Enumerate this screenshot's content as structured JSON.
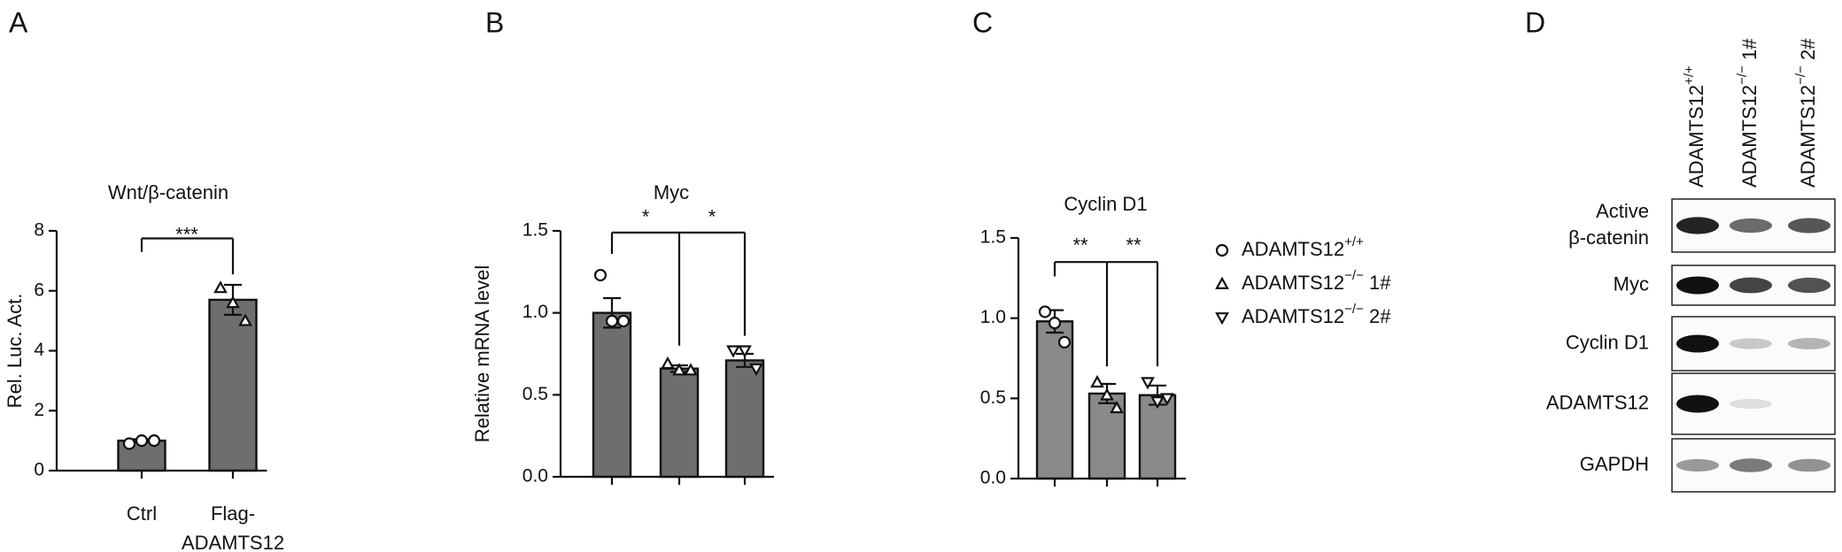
{
  "panels": [
    "A",
    "B",
    "C",
    "D"
  ],
  "chart_data": [
    {
      "type": "bar",
      "title": "Wnt/β-catenin",
      "ylabel": "Rel. Luc. Act.",
      "categories": [
        "Ctrl",
        [
          "Flag-",
          "ADAMTS12"
        ]
      ],
      "values": [
        1.0,
        5.7
      ],
      "errors": [
        0.05,
        0.5
      ],
      "points": [
        [
          0.9,
          1.0,
          1.0
        ],
        [
          6.1,
          5.6,
          5.0
        ]
      ],
      "markers": [
        "circle",
        "triangle"
      ],
      "color": "#6e6e6e",
      "ylim": [
        0,
        8
      ],
      "yticks": [
        0,
        2,
        4,
        6,
        8
      ],
      "annotations": [
        "***"
      ]
    },
    {
      "type": "bar",
      "title": "Myc",
      "ylabel": "Relative mRNA level",
      "categories": [
        null,
        null,
        null
      ],
      "values": [
        1.0,
        0.66,
        0.71
      ],
      "errors": [
        0.09,
        0.02,
        0.04
      ],
      "points": [
        [
          1.23,
          0.95,
          0.95
        ],
        [
          0.69,
          0.65,
          0.65
        ],
        [
          0.77,
          0.77,
          0.66
        ]
      ],
      "markers": [
        "circle",
        "triangle",
        "triangle-down"
      ],
      "color": "#6e6e6e",
      "ylim": [
        0,
        1.5
      ],
      "yticks": [
        {
          "value": 0,
          "label": "0.0"
        },
        0.5,
        {
          "value": 1,
          "label": "1.0"
        },
        1.5
      ],
      "annotations": [
        "*",
        "*"
      ]
    },
    {
      "type": "bar",
      "title": "Cyclin D1",
      "categories": [
        null,
        null,
        null
      ],
      "values": [
        0.98,
        0.53,
        0.52
      ],
      "errors": [
        0.07,
        0.06,
        0.06
      ],
      "points": [
        [
          1.04,
          0.97,
          0.85
        ],
        [
          0.6,
          0.52,
          0.44
        ],
        [
          0.6,
          0.48,
          0.5
        ]
      ],
      "markers": [
        "circle",
        "triangle",
        "triangle-down"
      ],
      "color": "#8a8a8a",
      "ylim": [
        0,
        1.5
      ],
      "yticks": [
        {
          "value": 0,
          "label": "0.0"
        },
        0.5,
        {
          "value": 1,
          "label": "1.0"
        },
        1.5
      ],
      "annotations": [
        "**",
        "**"
      ],
      "legend": [
        {
          "text": "ADAMTS12",
          "sup": "+/+"
        },
        {
          "text": "ADAMTS12",
          "sup": "−/−",
          "after": " 1#"
        },
        {
          "text": "ADAMTS12",
          "sup": "−/−",
          "after": " 2#"
        }
      ]
    }
  ],
  "blot": {
    "lanes": [
      {
        "text": "ADAMTS12",
        "sup": "+/+"
      },
      {
        "text": "ADAMTS12",
        "sup": "−/−",
        "after": " 1#"
      },
      {
        "text": "ADAMTS12",
        "sup": "−/−",
        "after": " 2#"
      }
    ],
    "rows": [
      [
        "Active",
        "β-catenin"
      ],
      [
        "Myc"
      ],
      [
        "Cyclin D1"
      ],
      [
        "ADAMTS12"
      ],
      [
        "GAPDH"
      ]
    ]
  }
}
